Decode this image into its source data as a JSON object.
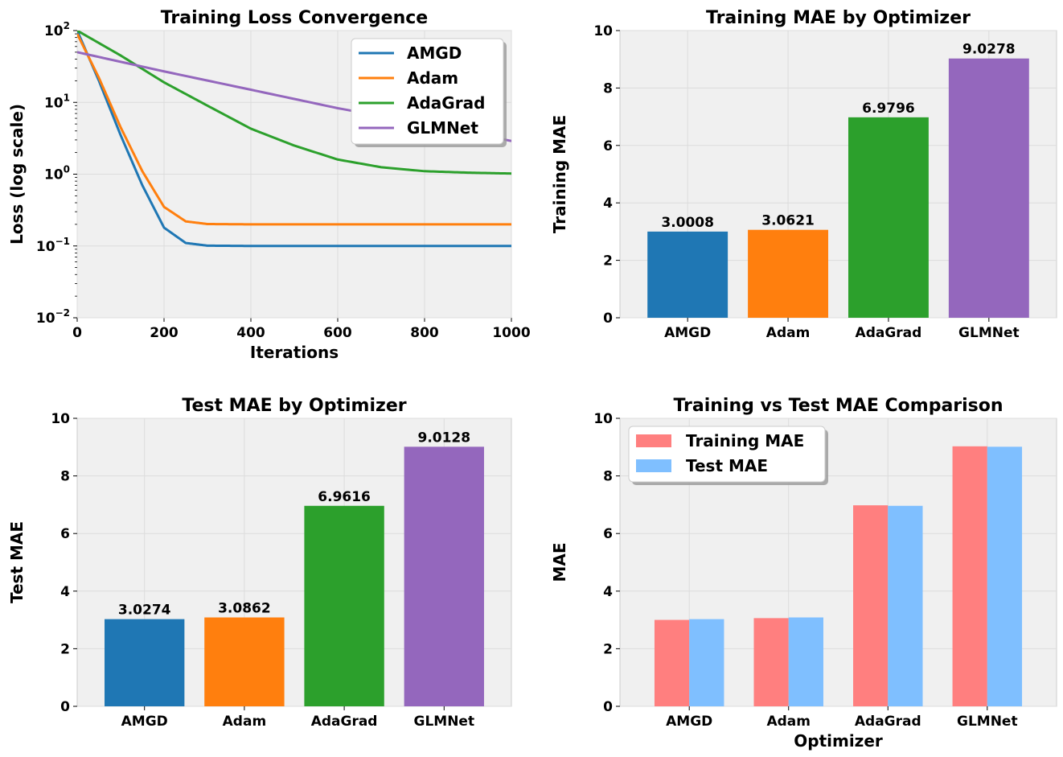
{
  "chart_data": [
    {
      "type": "line",
      "title": "Training Loss Convergence",
      "xlabel": "Iterations",
      "ylabel": "Loss (log scale)",
      "xlim": [
        0,
        1000
      ],
      "ylim": [
        0.01,
        100
      ],
      "yscale": "log",
      "xticks": [
        "0",
        "200",
        "400",
        "600",
        "800",
        "1000"
      ],
      "yticks": [
        {
          "base": "10",
          "exp": "−2"
        },
        {
          "base": "10",
          "exp": "−1"
        },
        {
          "base": "10",
          "exp": "0"
        },
        {
          "base": "10",
          "exp": "1"
        },
        {
          "base": "10",
          "exp": "2"
        }
      ],
      "grid": true,
      "legend_position": "top-right",
      "series": [
        {
          "name": "AMGD",
          "color": "#1f77b4",
          "x": [
            0,
            50,
            100,
            150,
            200,
            250,
            300,
            400,
            600,
            800,
            1000
          ],
          "y": [
            100,
            20,
            3.5,
            0.7,
            0.18,
            0.11,
            0.101,
            0.1,
            0.1,
            0.1,
            0.1
          ]
        },
        {
          "name": "Adam",
          "color": "#ff7f0e",
          "x": [
            0,
            50,
            100,
            150,
            200,
            250,
            300,
            400,
            600,
            800,
            1000
          ],
          "y": [
            90,
            22,
            4.5,
            1.1,
            0.35,
            0.22,
            0.202,
            0.2,
            0.2,
            0.2,
            0.2
          ]
        },
        {
          "name": "AdaGrad",
          "color": "#2ca02c",
          "x": [
            0,
            100,
            200,
            300,
            400,
            500,
            600,
            700,
            800,
            900,
            1000
          ],
          "y": [
            100,
            45,
            19,
            9,
            4.3,
            2.5,
            1.6,
            1.25,
            1.1,
            1.05,
            1.02
          ]
        },
        {
          "name": "GLMNet",
          "color": "#9467bd",
          "x": [
            0,
            200,
            400,
            600,
            800,
            1000
          ],
          "y": [
            50,
            27,
            15,
            8.3,
            5,
            2.9
          ]
        }
      ]
    },
    {
      "type": "bar",
      "title": "Training MAE by Optimizer",
      "xlabel": "",
      "ylabel": "Training MAE",
      "ylim": [
        0,
        10
      ],
      "yticks": [
        "0",
        "2",
        "4",
        "6",
        "8",
        "10"
      ],
      "grid": true,
      "categories": [
        "AMGD",
        "Adam",
        "AdaGrad",
        "GLMNet"
      ],
      "values": [
        3.0008,
        3.0621,
        6.9796,
        9.0278
      ],
      "labels": [
        "3.0008",
        "3.0621",
        "6.9796",
        "9.0278"
      ],
      "colors": [
        "#1f77b4",
        "#ff7f0e",
        "#2ca02c",
        "#9467bd"
      ]
    },
    {
      "type": "bar",
      "title": "Test MAE by Optimizer",
      "xlabel": "",
      "ylabel": "Test MAE",
      "ylim": [
        0,
        10
      ],
      "yticks": [
        "0",
        "2",
        "4",
        "6",
        "8",
        "10"
      ],
      "grid": true,
      "categories": [
        "AMGD",
        "Adam",
        "AdaGrad",
        "GLMNet"
      ],
      "values": [
        3.0274,
        3.0862,
        6.9616,
        9.0128
      ],
      "labels": [
        "3.0274",
        "3.0862",
        "6.9616",
        "9.0128"
      ],
      "colors": [
        "#1f77b4",
        "#ff7f0e",
        "#2ca02c",
        "#9467bd"
      ]
    },
    {
      "type": "bar",
      "title": "Training vs Test MAE Comparison",
      "xlabel": "Optimizer",
      "ylabel": "MAE",
      "ylim": [
        0,
        10
      ],
      "yticks": [
        "0",
        "2",
        "4",
        "6",
        "8",
        "10"
      ],
      "grid": true,
      "legend_position": "top-left",
      "categories": [
        "AMGD",
        "Adam",
        "AdaGrad",
        "GLMNet"
      ],
      "series": [
        {
          "name": "Training MAE",
          "color": "#ff7f7f",
          "values": [
            3.0008,
            3.0621,
            6.9796,
            9.0278
          ]
        },
        {
          "name": "Test MAE",
          "color": "#7fbfff",
          "values": [
            3.0274,
            3.0862,
            6.9616,
            9.0128
          ]
        }
      ]
    }
  ]
}
